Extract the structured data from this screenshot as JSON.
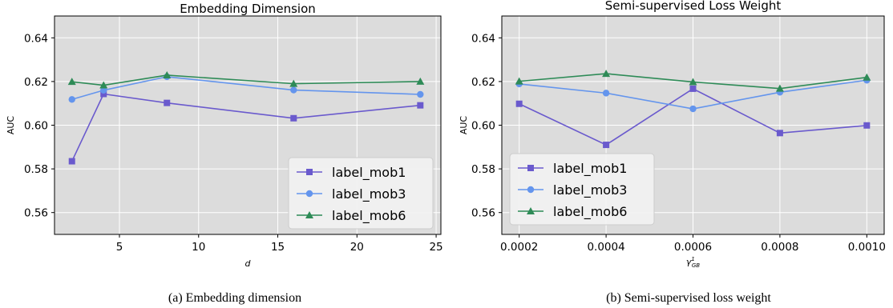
{
  "chart_data": [
    {
      "type": "line",
      "title": "Embedding Dimension",
      "xlabel": "d",
      "ylabel": "AUC",
      "xlim": [
        0.9,
        25.3
      ],
      "ylim": [
        0.55,
        0.65
      ],
      "xticks": [
        5,
        10,
        15,
        20,
        25
      ],
      "xtick_labels": [
        "5",
        "10",
        "15",
        "20",
        "25"
      ],
      "yticks": [
        0.56,
        0.58,
        0.6,
        0.62,
        0.64
      ],
      "ytick_labels": [
        "0.56",
        "0.58",
        "0.60",
        "0.62",
        "0.64"
      ],
      "grid": true,
      "legend": "lower-right",
      "x": [
        2,
        4,
        8,
        16,
        24
      ],
      "series": [
        {
          "name": "label_mob1",
          "values": [
            0.5835,
            0.6143,
            0.6102,
            0.6032,
            0.6091
          ],
          "color": "#6a5acd",
          "marker": "square"
        },
        {
          "name": "label_mob3",
          "values": [
            0.6118,
            0.616,
            0.6222,
            0.6161,
            0.6141
          ],
          "color": "#6495ed",
          "marker": "circle"
        },
        {
          "name": "label_mob6",
          "values": [
            0.6199,
            0.6183,
            0.6229,
            0.619,
            0.62
          ],
          "color": "#2e8b57",
          "marker": "triangle"
        }
      ],
      "caption": "(a)  Embedding dimension"
    },
    {
      "type": "line",
      "title": "Semi-supervised Loss Weight",
      "xlabel": "γ¹GB",
      "ylabel": "AUC",
      "xlim": [
        0.00016,
        0.00104
      ],
      "ylim": [
        0.55,
        0.65
      ],
      "xticks": [
        0.0002,
        0.0004,
        0.0006,
        0.0008,
        0.001
      ],
      "xtick_labels": [
        "0.0002",
        "0.0004",
        "0.0006",
        "0.0008",
        "0.0010"
      ],
      "yticks": [
        0.56,
        0.58,
        0.6,
        0.62,
        0.64
      ],
      "ytick_labels": [
        "0.56",
        "0.58",
        "0.60",
        "0.62",
        "0.64"
      ],
      "grid": true,
      "legend": "lower-left",
      "x": [
        0.0002,
        0.0004,
        0.0006,
        0.0008,
        0.001
      ],
      "series": [
        {
          "name": "label_mob1",
          "values": [
            0.6098,
            0.591,
            0.6167,
            0.5964,
            0.5999
          ],
          "color": "#6a5acd",
          "marker": "square"
        },
        {
          "name": "label_mob3",
          "values": [
            0.6189,
            0.6147,
            0.6075,
            0.6151,
            0.6206
          ],
          "color": "#6495ed",
          "marker": "circle"
        },
        {
          "name": "label_mob6",
          "values": [
            0.6201,
            0.6236,
            0.6198,
            0.6168,
            0.6219
          ],
          "color": "#2e8b57",
          "marker": "triangle"
        }
      ],
      "caption": "(b)  Semi-supervised loss weight"
    }
  ]
}
